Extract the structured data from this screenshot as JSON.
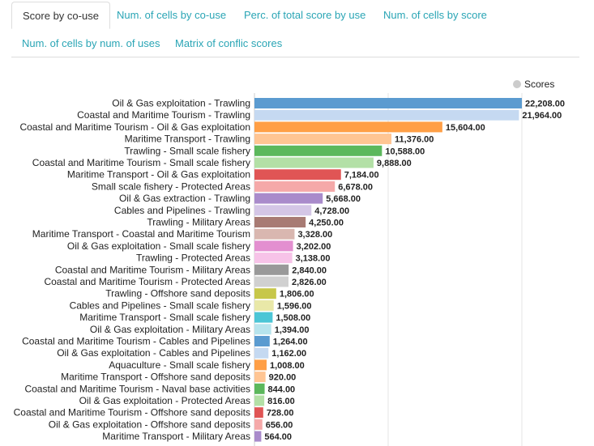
{
  "tabs": [
    {
      "label": "Score by co-use",
      "active": true
    },
    {
      "label": "Num. of cells by co-use",
      "active": false
    },
    {
      "label": "Perc. of total score by use",
      "active": false
    },
    {
      "label": "Num. of cells by score",
      "active": false
    },
    {
      "label": "Num. of cells by num. of uses",
      "active": false
    },
    {
      "label": "Matrix of conflic scores",
      "active": false
    }
  ],
  "chart_data": {
    "type": "bar",
    "orientation": "horizontal",
    "legend": {
      "entries": [
        "Scores"
      ],
      "placement": "top-right",
      "color": "#cccccc"
    },
    "grid": true,
    "xlim": [
      0,
      22208
    ],
    "series": [
      {
        "name": "Scores",
        "values": [
          22208,
          21964,
          15604,
          11376,
          10588,
          9888,
          7184,
          6678,
          5668,
          4728,
          4250,
          3328,
          3202,
          3138,
          2840,
          2826,
          1806,
          1596,
          1508,
          1394,
          1264,
          1162,
          1008,
          920,
          844,
          816,
          728,
          656,
          564
        ]
      }
    ],
    "categories": [
      "Oil & Gas exploitation - Trawling",
      "Coastal and Maritime Tourism - Trawling",
      "Coastal and Maritime Tourism - Oil & Gas exploitation",
      "Maritime Transport - Trawling",
      "Trawling - Small scale fishery",
      "Coastal and Maritime Tourism - Small scale fishery",
      "Maritime Transport - Oil & Gas exploitation",
      "Small scale fishery - Protected Areas",
      "Oil & Gas extraction - Trawling",
      "Cables and Pipelines - Trawling",
      "Trawling - Military Areas",
      "Maritime Transport - Coastal and Maritime Tourism",
      "Oil & Gas exploitation - Small scale fishery",
      "Trawling - Protected Areas",
      "Coastal and Maritime Tourism - Military Areas",
      "Coastal and Maritime Tourism - Protected Areas",
      "Trawling - Offshore sand deposits",
      "Cables and Pipelines - Small scale fishery",
      "Maritime Transport - Small scale fishery",
      "Oil & Gas exploitation - Military Areas",
      "Coastal and Maritime Tourism - Cables and Pipelines",
      "Oil & Gas exploitation - Cables and Pipelines",
      "Aquaculture - Small scale fishery",
      "Maritime Transport - Offshore sand deposits",
      "Coastal and Maritime Tourism - Naval base activities",
      "Oil & Gas exploitation - Protected Areas",
      "Coastal and Maritime Tourism - Offshore sand deposits",
      "Oil & Gas exploitation - Offshore sand deposits",
      "Maritime Transport - Military Areas"
    ],
    "value_labels": [
      "22,208.00",
      "21,964.00",
      "15,604.00",
      "11,376.00",
      "10,588.00",
      "9,888.00",
      "7,184.00",
      "6,678.00",
      "5,668.00",
      "4,728.00",
      "4,250.00",
      "3,328.00",
      "3,202.00",
      "3,138.00",
      "2,840.00",
      "2,826.00",
      "1,806.00",
      "1,596.00",
      "1,508.00",
      "1,394.00",
      "1,264.00",
      "1,162.00",
      "1,008.00",
      "920.00",
      "844.00",
      "816.00",
      "728.00",
      "656.00",
      "564.00"
    ],
    "colors": [
      "#5b9bd0",
      "#c5d9f1",
      "#ff9f46",
      "#ffc593",
      "#5cb85c",
      "#b3e0a6",
      "#e05555",
      "#f5a9a9",
      "#a98bcb",
      "#d4c6e6",
      "#a87b74",
      "#d9b7b0",
      "#e38fd0",
      "#f7c3e8",
      "#999999",
      "#d0d0d0",
      "#c7c74a",
      "#e9e8a8",
      "#4cc6d6",
      "#b7e4ed",
      "#5b9bd0",
      "#c5d9f1",
      "#ff9f46",
      "#ffc593",
      "#5cb85c",
      "#b3e0a6",
      "#e05555",
      "#f5a9a9",
      "#a98bcb"
    ]
  }
}
